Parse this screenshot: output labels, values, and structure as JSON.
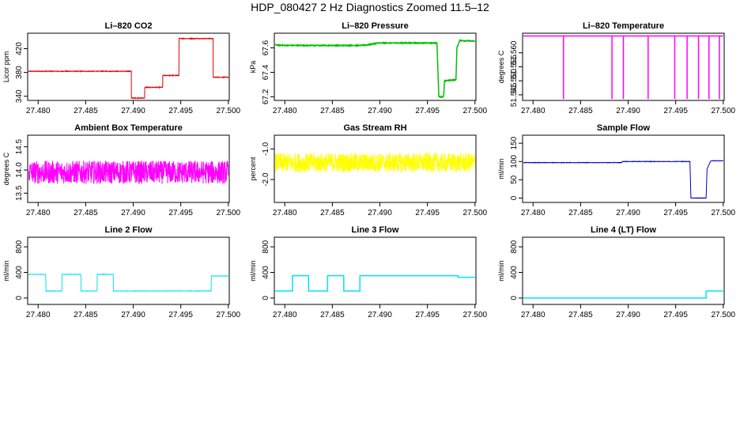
{
  "title": "HDP_080427  2 Hz Diagnostics Zoomed 11.5–12",
  "chart_data": [
    {
      "type": "line",
      "title": "Li–820 CO2",
      "xlabel": "",
      "ylabel": "Licor ppm",
      "color": "#e00000",
      "xlim": [
        27.4789,
        27.5001
      ],
      "ylim": [
        333,
        446
      ],
      "xticks": [
        "27.480",
        "27.485",
        "27.490",
        "27.495",
        "27.500"
      ],
      "yticks": [
        340,
        380,
        420
      ],
      "series": [
        {
          "x": [
            27.4789,
            27.4898,
            27.4898,
            27.4912,
            27.4912,
            27.4931,
            27.4931,
            27.4948,
            27.4948,
            27.4984,
            27.4984,
            27.5
          ],
          "y": [
            382,
            382,
            337,
            337,
            355,
            355,
            375,
            375,
            437,
            437,
            372,
            372
          ]
        }
      ],
      "noise": 0.6
    },
    {
      "type": "line",
      "title": "Li–820 Pressure",
      "xlabel": "",
      "ylabel": "kPa",
      "color": "#00c000",
      "xlim": [
        27.4789,
        27.5001
      ],
      "ylim": [
        67.17,
        67.72
      ],
      "xticks": [
        "27.480",
        "27.485",
        "27.490",
        "27.495",
        "27.500"
      ],
      "yticks": [
        "67.2",
        "67.4",
        "67.6"
      ],
      "series": [
        {
          "x": [
            27.4789,
            27.48,
            27.488,
            27.4888,
            27.4898,
            27.496,
            27.4962,
            27.4967,
            27.4968,
            27.498,
            27.4981,
            27.4984,
            27.5
          ],
          "y": [
            67.625,
            67.62,
            67.62,
            67.625,
            67.64,
            67.64,
            67.2,
            67.2,
            67.33,
            67.34,
            67.6,
            67.66,
            67.655
          ]
        }
      ],
      "noise": 0.003
    },
    {
      "type": "line",
      "title": "Li–820 Temperature",
      "xlabel": "",
      "ylabel": "degrees C",
      "color": "#ff00ff",
      "xlim": [
        27.4789,
        27.5001
      ],
      "ylim": [
        51.543,
        51.567
      ],
      "xticks": [
        "27.480",
        "27.485",
        "27.490",
        "27.495",
        "27.500"
      ],
      "yticks": [
        "51.545",
        "51.550",
        "51.555",
        "51.560"
      ],
      "series": [
        {
          "x": [
            27.4789,
            27.5
          ],
          "y": [
            51.566,
            51.566
          ]
        }
      ],
      "spikes": [
        27.4832,
        27.4883,
        27.4895,
        27.4921,
        27.4949,
        27.4962,
        27.4974,
        27.4985,
        27.4996
      ],
      "spike_low": 51.5435
    },
    {
      "type": "line",
      "title": "Ambient Box Temperature",
      "xlabel": "",
      "ylabel": "degrees C",
      "color": "#ff00ff",
      "xlim": [
        27.4789,
        27.5001
      ],
      "ylim": [
        13.3,
        14.75
      ],
      "xticks": [
        "27.480",
        "27.485",
        "27.490",
        "27.495",
        "27.500"
      ],
      "yticks": [
        "13.5",
        "14.0",
        "14.5"
      ],
      "series": [
        {
          "x": [
            27.4789,
            27.5
          ],
          "y": [
            13.95,
            13.95
          ]
        }
      ],
      "noise": 0.25
    },
    {
      "type": "line",
      "title": "Gas Stream RH",
      "xlabel": "",
      "ylabel": "percent",
      "color": "#ffff00",
      "xlim": [
        27.4789,
        27.5001
      ],
      "ylim": [
        -2.75,
        -0.55
      ],
      "xticks": [
        "27.480",
        "27.485",
        "27.490",
        "27.495",
        "27.500"
      ],
      "yticks": [
        "-2.0",
        "-1.0"
      ],
      "series": [
        {
          "x": [
            27.4789,
            27.5
          ],
          "y": [
            -1.45,
            -1.45
          ]
        }
      ],
      "noise": 0.32
    },
    {
      "type": "line",
      "title": "Sample Flow",
      "xlabel": "",
      "ylabel": "ml/min",
      "color": "#0000c8",
      "xlim": [
        27.4789,
        27.5001
      ],
      "ylim": [
        -12,
        172
      ],
      "xticks": [
        "27.480",
        "27.485",
        "27.490",
        "27.495",
        "27.500"
      ],
      "yticks": [
        0,
        50,
        100,
        150
      ],
      "series": [
        {
          "x": [
            27.4789,
            27.4893,
            27.4894,
            27.4965,
            27.4966,
            27.4982,
            27.4983,
            27.4987,
            27.5
          ],
          "y": [
            97,
            97,
            100,
            100,
            0,
            0,
            80,
            102,
            102
          ]
        }
      ],
      "noise": 0.6
    },
    {
      "type": "line",
      "title": "Line 2 Flow",
      "xlabel": "",
      "ylabel": "ml/min",
      "color": "#00e5ee",
      "xlim": [
        27.4789,
        27.5001
      ],
      "ylim": [
        -100,
        950
      ],
      "xticks": [
        "27.480",
        "27.485",
        "27.490",
        "27.495",
        "27.500"
      ],
      "yticks": [
        0,
        400,
        800
      ],
      "series": [
        {
          "x": [
            27.4789,
            27.4808,
            27.4808,
            27.4825,
            27.4825,
            27.4845,
            27.4845,
            27.4862,
            27.4862,
            27.4879,
            27.4879,
            27.4982,
            27.4982,
            27.5
          ],
          "y": [
            370,
            370,
            110,
            110,
            370,
            370,
            110,
            110,
            370,
            370,
            110,
            110,
            345,
            345
          ]
        }
      ],
      "noise": 3
    },
    {
      "type": "line",
      "title": "Line 3 Flow",
      "xlabel": "",
      "ylabel": "ml/min",
      "color": "#00e5ee",
      "xlim": [
        27.4789,
        27.5001
      ],
      "ylim": [
        -100,
        950
      ],
      "xticks": [
        "27.480",
        "27.485",
        "27.490",
        "27.495",
        "27.500"
      ],
      "yticks": [
        0,
        400,
        800
      ],
      "series": [
        {
          "x": [
            27.4789,
            27.4808,
            27.4808,
            27.4825,
            27.4825,
            27.4845,
            27.4845,
            27.4862,
            27.4862,
            27.4879,
            27.4879,
            27.4982,
            27.4982,
            27.5
          ],
          "y": [
            110,
            110,
            350,
            350,
            110,
            110,
            350,
            350,
            110,
            110,
            350,
            350,
            325,
            325
          ]
        }
      ]
    },
    {
      "type": "line",
      "title": "Line 4 (LT) Flow",
      "xlabel": "",
      "ylabel": "ml/min",
      "color": "#00e5ee",
      "xlim": [
        27.4789,
        27.5001
      ],
      "ylim": [
        -100,
        950
      ],
      "xticks": [
        "27.480",
        "27.485",
        "27.490",
        "27.495",
        "27.500"
      ],
      "yticks": [
        0,
        400,
        800
      ],
      "series": [
        {
          "x": [
            27.4789,
            27.4982,
            27.4982,
            27.5
          ],
          "y": [
            0,
            0,
            110,
            110
          ]
        }
      ]
    }
  ]
}
